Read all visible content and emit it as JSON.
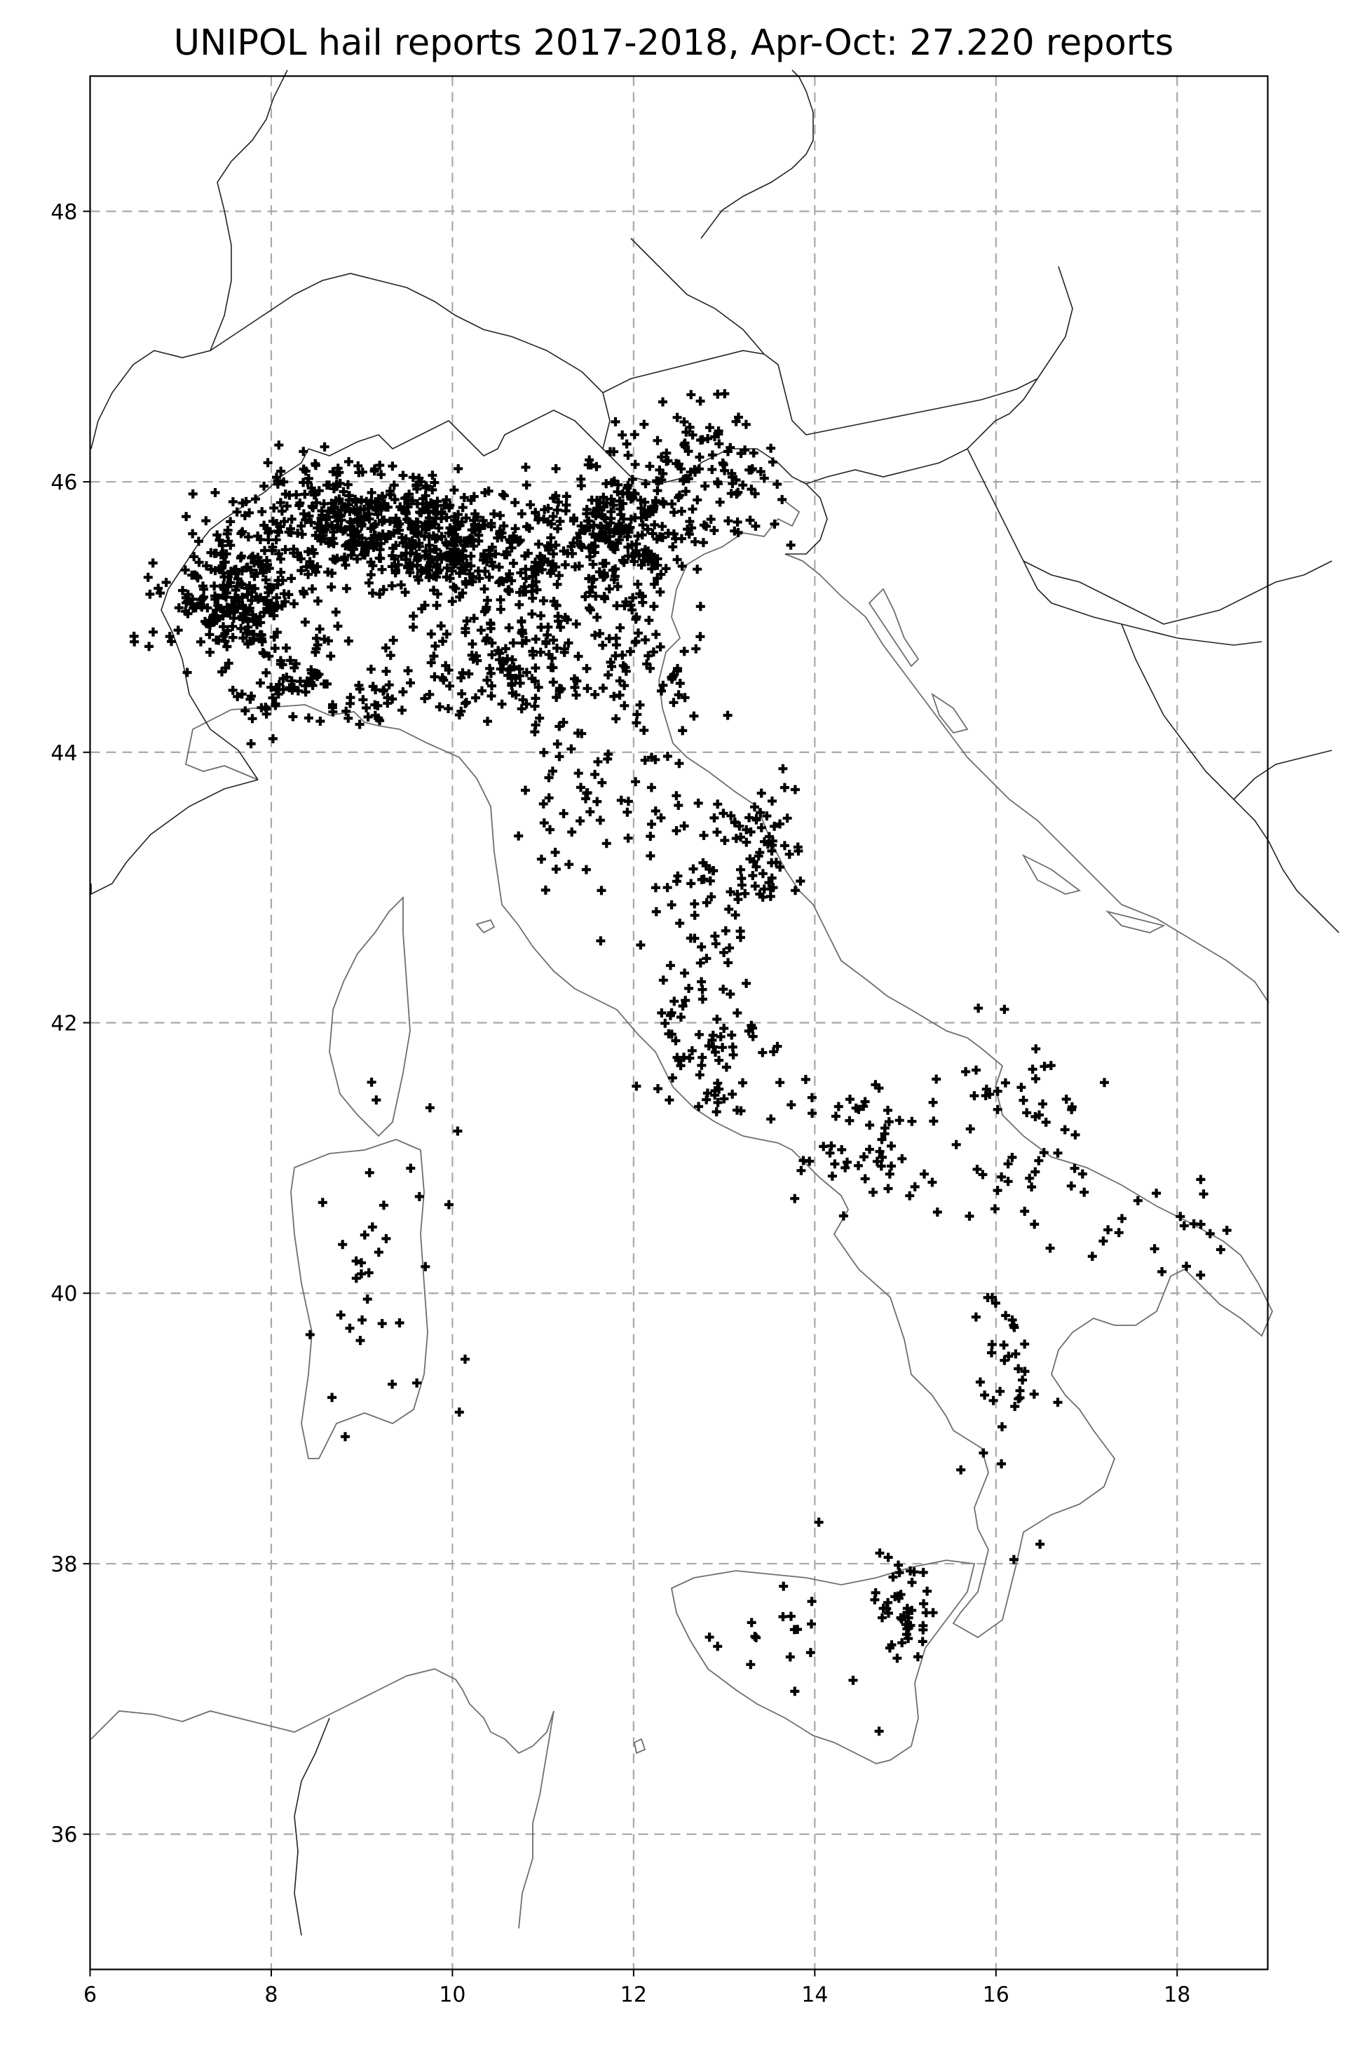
{
  "chart_data": {
    "type": "scatter",
    "title": "UNIPOL hail reports 2017-2018, Apr-Oct: 27.220 reports",
    "xlabel": "",
    "ylabel": "",
    "xlim": [
      6,
      19
    ],
    "ylim": [
      35,
      49
    ],
    "x_ticks": [
      6,
      8,
      10,
      12,
      14,
      16,
      18
    ],
    "y_ticks": [
      36,
      38,
      40,
      42,
      44,
      46,
      48
    ],
    "grid": true,
    "marker": "plus",
    "colors": {
      "points": "#000000",
      "grid": "#a8a8a8",
      "coast": "#6e6e6e",
      "borders": "#222222"
    },
    "clusters": [
      {
        "x": 7.6,
        "y": 45.15,
        "sx": 0.38,
        "sy": 0.28,
        "n": 260
      },
      {
        "x": 8.2,
        "y": 44.55,
        "sx": 0.35,
        "sy": 0.2,
        "n": 60
      },
      {
        "x": 8.9,
        "y": 45.7,
        "sx": 0.55,
        "sy": 0.2,
        "n": 320
      },
      {
        "x": 9.9,
        "y": 45.55,
        "sx": 0.5,
        "sy": 0.2,
        "n": 220
      },
      {
        "x": 10.9,
        "y": 45.45,
        "sx": 0.5,
        "sy": 0.25,
        "n": 140
      },
      {
        "x": 11.9,
        "y": 45.6,
        "sx": 0.35,
        "sy": 0.3,
        "n": 230
      },
      {
        "x": 12.9,
        "y": 46.05,
        "sx": 0.35,
        "sy": 0.25,
        "n": 90
      },
      {
        "x": 10.8,
        "y": 44.7,
        "sx": 0.75,
        "sy": 0.25,
        "n": 170
      },
      {
        "x": 12.3,
        "y": 44.35,
        "sx": 0.3,
        "sy": 0.3,
        "n": 40
      },
      {
        "x": 9.0,
        "y": 44.35,
        "sx": 0.3,
        "sy": 0.1,
        "n": 30
      },
      {
        "x": 11.4,
        "y": 43.7,
        "sx": 0.45,
        "sy": 0.3,
        "n": 45
      },
      {
        "x": 13.4,
        "y": 43.3,
        "sx": 0.2,
        "sy": 0.25,
        "n": 60
      },
      {
        "x": 12.7,
        "y": 42.9,
        "sx": 0.45,
        "sy": 0.45,
        "n": 70
      },
      {
        "x": 12.8,
        "y": 41.85,
        "sx": 0.3,
        "sy": 0.25,
        "n": 60
      },
      {
        "x": 14.4,
        "y": 41.1,
        "sx": 0.45,
        "sy": 0.3,
        "n": 55
      },
      {
        "x": 16.2,
        "y": 41.2,
        "sx": 0.6,
        "sy": 0.4,
        "n": 55
      },
      {
        "x": 17.8,
        "y": 40.4,
        "sx": 0.35,
        "sy": 0.25,
        "n": 20
      },
      {
        "x": 16.3,
        "y": 39.4,
        "sx": 0.3,
        "sy": 0.5,
        "n": 35
      },
      {
        "x": 15.0,
        "y": 37.6,
        "sx": 0.12,
        "sy": 0.15,
        "n": 40
      },
      {
        "x": 13.9,
        "y": 37.6,
        "sx": 0.55,
        "sy": 0.3,
        "n": 25
      },
      {
        "x": 9.2,
        "y": 40.2,
        "sx": 0.45,
        "sy": 0.6,
        "n": 35
      }
    ]
  }
}
